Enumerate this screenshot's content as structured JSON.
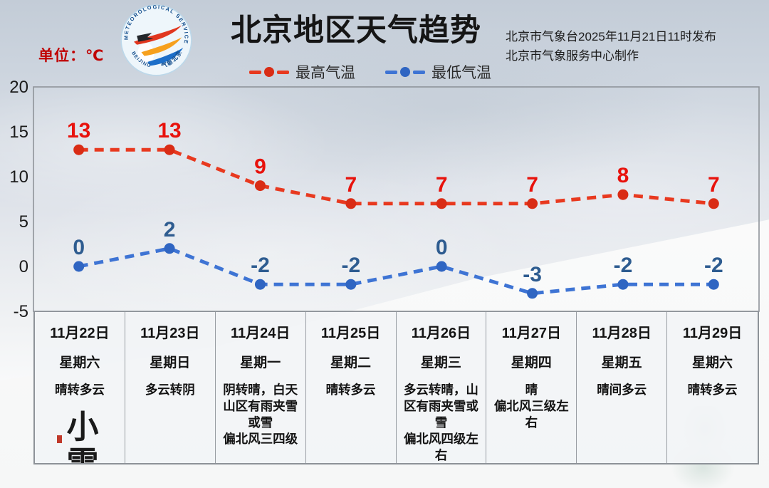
{
  "header": {
    "unit_label": "单位：℃",
    "title": "北京地区天气趋势",
    "issue_line1": "北京市气象台2025年11月21日11时发布",
    "issue_line2": "北京市气象服务中心制作",
    "logo": {
      "ring_text_top": "METEOROLOGICAL SERVICE",
      "ring_text_bottom_left": "BEIJING",
      "ring_text_bottom_right": "气象北京"
    }
  },
  "colors": {
    "high_line": "#e8391f",
    "high_point": "#d92c15",
    "high_label": "#e8120c",
    "low_line": "#3e74d4",
    "low_point": "#2f65c2",
    "low_label": "#2e5c90",
    "unit_red": "#c00000",
    "axis_text": "#1b1b1b",
    "plot_border": "#8f949a"
  },
  "chart_data": {
    "type": "line",
    "title": "北京地区天气趋势",
    "unit": "℃",
    "categories": [
      "11月22日",
      "11月23日",
      "11月24日",
      "11月25日",
      "11月26日",
      "11月27日",
      "11月28日",
      "11月29日"
    ],
    "series": [
      {
        "name": "最高气温",
        "values": [
          13,
          13,
          9,
          7,
          7,
          7,
          8,
          7
        ]
      },
      {
        "name": "最低气温",
        "values": [
          0,
          2,
          -2,
          -2,
          0,
          -3,
          -2,
          -2
        ]
      }
    ],
    "ylim": [
      -5,
      20
    ],
    "yticks": [
      20,
      15,
      10,
      5,
      0,
      -5
    ],
    "grid": false,
    "line_style": "dashed",
    "legend_position": "top-center"
  },
  "table": {
    "columns": [
      {
        "date": "11月22日",
        "weekday": "星期六",
        "weather": "晴转多云",
        "wind": "",
        "calligraphy": "小雪"
      },
      {
        "date": "11月23日",
        "weekday": "星期日",
        "weather": "多云转阴",
        "wind": "",
        "calligraphy": ""
      },
      {
        "date": "11月24日",
        "weekday": "星期一",
        "weather": "阴转晴，白天山区有雨夹雪或雪",
        "wind": "偏北风三四级",
        "calligraphy": ""
      },
      {
        "date": "11月25日",
        "weekday": "星期二",
        "weather": "晴转多云",
        "wind": "",
        "calligraphy": ""
      },
      {
        "date": "11月26日",
        "weekday": "星期三",
        "weather": "多云转晴，山区有雨夹雪或雪",
        "wind": "偏北风四级左右",
        "calligraphy": ""
      },
      {
        "date": "11月27日",
        "weekday": "星期四",
        "weather": "晴",
        "wind": "偏北风三级左右",
        "calligraphy": ""
      },
      {
        "date": "11月28日",
        "weekday": "星期五",
        "weather": "晴间多云",
        "wind": "",
        "calligraphy": ""
      },
      {
        "date": "11月29日",
        "weekday": "星期六",
        "weather": "晴转多云",
        "wind": "",
        "calligraphy": ""
      }
    ]
  }
}
